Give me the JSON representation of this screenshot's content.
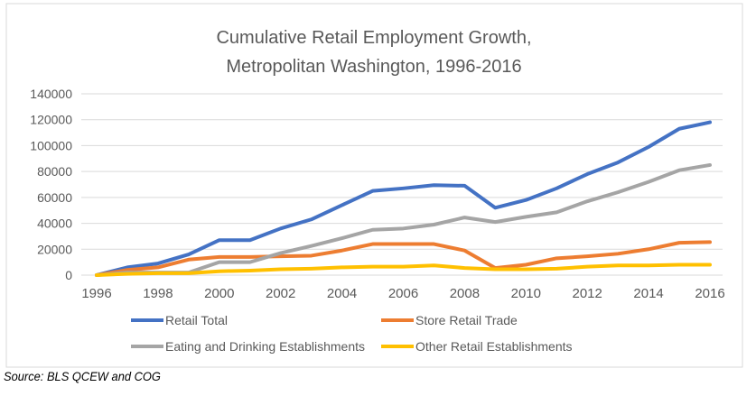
{
  "chart_data": {
    "type": "line",
    "title": "Cumulative Retail Employment Growth,\nMetropolitan Washington, 1996-2016",
    "title_lines": [
      "Cumulative Retail Employment Growth,",
      "Metropolitan Washington, 1996-2016"
    ],
    "xlabel": "",
    "ylabel": "",
    "x": [
      1996,
      1997,
      1998,
      1999,
      2000,
      2001,
      2002,
      2003,
      2004,
      2005,
      2006,
      2007,
      2008,
      2009,
      2010,
      2011,
      2012,
      2013,
      2014,
      2015,
      2016
    ],
    "x_ticks": [
      "1996",
      "1998",
      "2000",
      "2002",
      "2004",
      "2006",
      "2008",
      "2010",
      "2012",
      "2014",
      "2016"
    ],
    "y_ticks": [
      "0",
      "20000",
      "40000",
      "60000",
      "80000",
      "100000",
      "120000",
      "140000"
    ],
    "ylim": [
      0,
      140000
    ],
    "grid": true,
    "legend_position": "bottom",
    "series": [
      {
        "name": "Retail Total",
        "color": "#4472C4",
        "values": [
          0,
          6000,
          9000,
          16000,
          27000,
          27000,
          36000,
          43000,
          54000,
          65000,
          67000,
          69500,
          69000,
          52000,
          58000,
          67000,
          78000,
          87000,
          99000,
          113000,
          118000
        ]
      },
      {
        "name": "Store Retail Trade",
        "color": "#ED7D31",
        "values": [
          0,
          4000,
          6000,
          12000,
          14000,
          14000,
          14500,
          15000,
          19000,
          24000,
          24000,
          24000,
          19000,
          5500,
          8000,
          13000,
          14500,
          16500,
          20000,
          25000,
          25500
        ]
      },
      {
        "name": "Eating and Drinking Establishments",
        "color": "#A5A5A5",
        "values": [
          0,
          2000,
          2000,
          2000,
          10000,
          10000,
          17000,
          22500,
          28500,
          35000,
          36000,
          39000,
          44500,
          41000,
          45000,
          48500,
          57000,
          64000,
          72000,
          81000,
          85000
        ]
      },
      {
        "name": "Other Retail Establishments",
        "color": "#FFC000",
        "values": [
          0,
          1000,
          1500,
          1500,
          3000,
          3500,
          4500,
          5000,
          6000,
          6500,
          6500,
          7500,
          5500,
          4500,
          4500,
          5000,
          6500,
          7500,
          7500,
          8000,
          8000
        ]
      }
    ]
  },
  "source": "Source: BLS QCEW and COG"
}
